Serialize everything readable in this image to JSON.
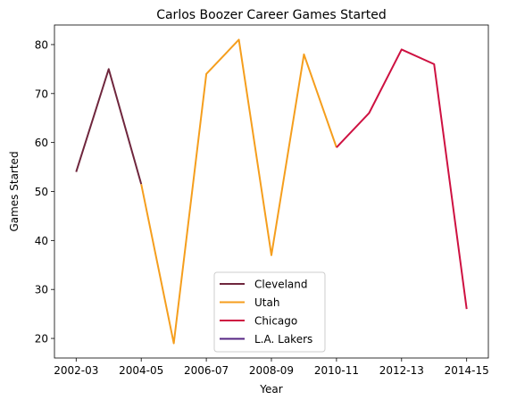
{
  "chart_data": {
    "type": "line",
    "title": "Carlos Boozer Career Games Started",
    "xlabel": "Year",
    "ylabel": "Games Started",
    "x": [
      "2002-03",
      "2003-04",
      "2004-05",
      "2005-06",
      "2006-07",
      "2007-08",
      "2008-09",
      "2009-10",
      "2010-11",
      "2011-12",
      "2012-13",
      "2013-14",
      "2014-15"
    ],
    "x_tick_labels": [
      "2002-03",
      "2004-05",
      "2006-07",
      "2008-09",
      "2010-11",
      "2012-13",
      "2014-15"
    ],
    "y_ticks": [
      20,
      30,
      40,
      50,
      60,
      70,
      80
    ],
    "ylim": [
      16,
      84
    ],
    "grid": false,
    "legend_position": "bottom-center",
    "series": [
      {
        "name": "Cleveland",
        "color": "#6f263d",
        "points": [
          {
            "x": "2002-03",
            "y": 54
          },
          {
            "x": "2003-04",
            "y": 75
          },
          {
            "x": "2004-05",
            "y": 51.5
          }
        ]
      },
      {
        "name": "Utah",
        "color": "#f59e1d",
        "points": [
          {
            "x": "2004-05",
            "y": 51.5
          },
          {
            "x": "2005-06",
            "y": 19
          },
          {
            "x": "2006-07",
            "y": 74
          },
          {
            "x": "2007-08",
            "y": 81
          },
          {
            "x": "2008-09",
            "y": 37
          },
          {
            "x": "2009-10",
            "y": 78
          },
          {
            "x": "2010-11",
            "y": 59
          }
        ]
      },
      {
        "name": "Chicago",
        "color": "#ce1141",
        "points": [
          {
            "x": "2010-11",
            "y": 59
          },
          {
            "x": "2011-12",
            "y": 66
          },
          {
            "x": "2012-13",
            "y": 79
          },
          {
            "x": "2013-14",
            "y": 76
          },
          {
            "x": "2014-15",
            "y": 26
          }
        ]
      },
      {
        "name": "L.A. Lakers",
        "color": "#552583",
        "points": []
      }
    ]
  }
}
